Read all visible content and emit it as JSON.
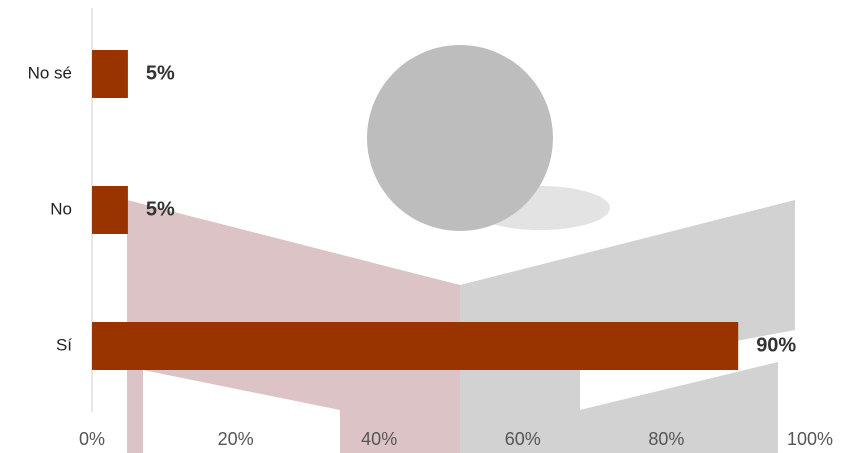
{
  "chart_data": {
    "type": "bar",
    "orientation": "horizontal",
    "categories": [
      "No sé",
      "No",
      "Sí"
    ],
    "values": [
      5,
      5,
      90
    ],
    "value_labels": [
      "5%",
      "5%",
      "90%"
    ],
    "color": "#993300",
    "xlim": [
      0,
      100
    ],
    "xticks": [
      {
        "value": 0,
        "label": "0%"
      },
      {
        "value": 20,
        "label": "20%"
      },
      {
        "value": 40,
        "label": "40%"
      },
      {
        "value": 60,
        "label": "60%"
      },
      {
        "value": 80,
        "label": "80%"
      },
      {
        "value": 100,
        "label": "100%"
      }
    ]
  }
}
